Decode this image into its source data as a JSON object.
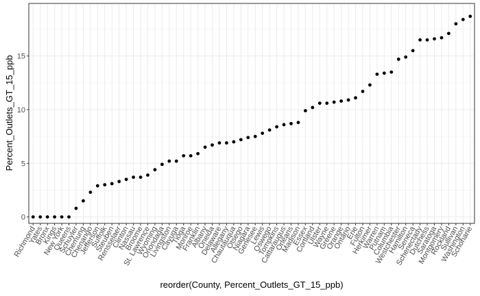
{
  "chart_data": {
    "type": "scatter",
    "x_label": "reorder(County, Percent_Outlets_GT_15_ppb)",
    "y_label": "Percent_Outlets_GT_15_ppb",
    "categories": [
      "Richmond",
      "Yates",
      "Bronx",
      "Kings",
      "New York",
      "Queens",
      "Schuyler",
      "Chemung",
      "Chenango",
      "Jefferson",
      "Suffolk",
      "Steuben",
      "Rensselaer",
      "Clinton",
      "Nassau",
      "Broome",
      "St. Lawrence",
      "Wyoming",
      "Onondaga",
      "Livingston",
      "Cayuga",
      "Tioga",
      "Monroe",
      "Franklin",
      "Albany",
      "Oneida",
      "Delaware",
      "Allegany",
      "Chautauqua",
      "Otsego",
      "Niagara",
      "Genesee",
      "Lewis",
      "Oswego",
      "Tompkins",
      "Cattaraugus",
      "Orleans",
      "Madison",
      "Essex",
      "Cortland",
      "Ulster",
      "Wayne",
      "Greene",
      "Orange",
      "Ontario",
      "Erie",
      "Fulton",
      "Herkimer",
      "Warren",
      "Putnam",
      "Columbia",
      "Westchester",
      "Hamilton",
      "Seneca",
      "Schenectady",
      "Dutchess",
      "Saratoga",
      "Montgomery",
      "Rockland",
      "Sullivan",
      "Washington",
      "Schoharie"
    ],
    "values": [
      0,
      0,
      0,
      0,
      0,
      0,
      0.8,
      1.5,
      2.3,
      2.9,
      3.0,
      3.1,
      3.3,
      3.5,
      3.7,
      3.7,
      3.9,
      4.4,
      4.9,
      5.2,
      5.2,
      5.7,
      5.7,
      5.9,
      6.5,
      6.7,
      6.9,
      6.9,
      7.0,
      7.2,
      7.4,
      7.5,
      7.8,
      8.1,
      8.4,
      8.6,
      8.7,
      8.8,
      9.9,
      10.2,
      10.6,
      10.6,
      10.7,
      10.8,
      10.9,
      11.1,
      11.7,
      12.3,
      13.3,
      13.4,
      13.5,
      14.7,
      14.9,
      15.5,
      16.5,
      16.5,
      16.6,
      16.7,
      17.1,
      18.0,
      18.4,
      18.7
    ],
    "color": "#000000",
    "ylim": [
      -0.6,
      19.9
    ],
    "yticks": [
      0,
      5,
      10,
      15
    ],
    "grid": true
  }
}
